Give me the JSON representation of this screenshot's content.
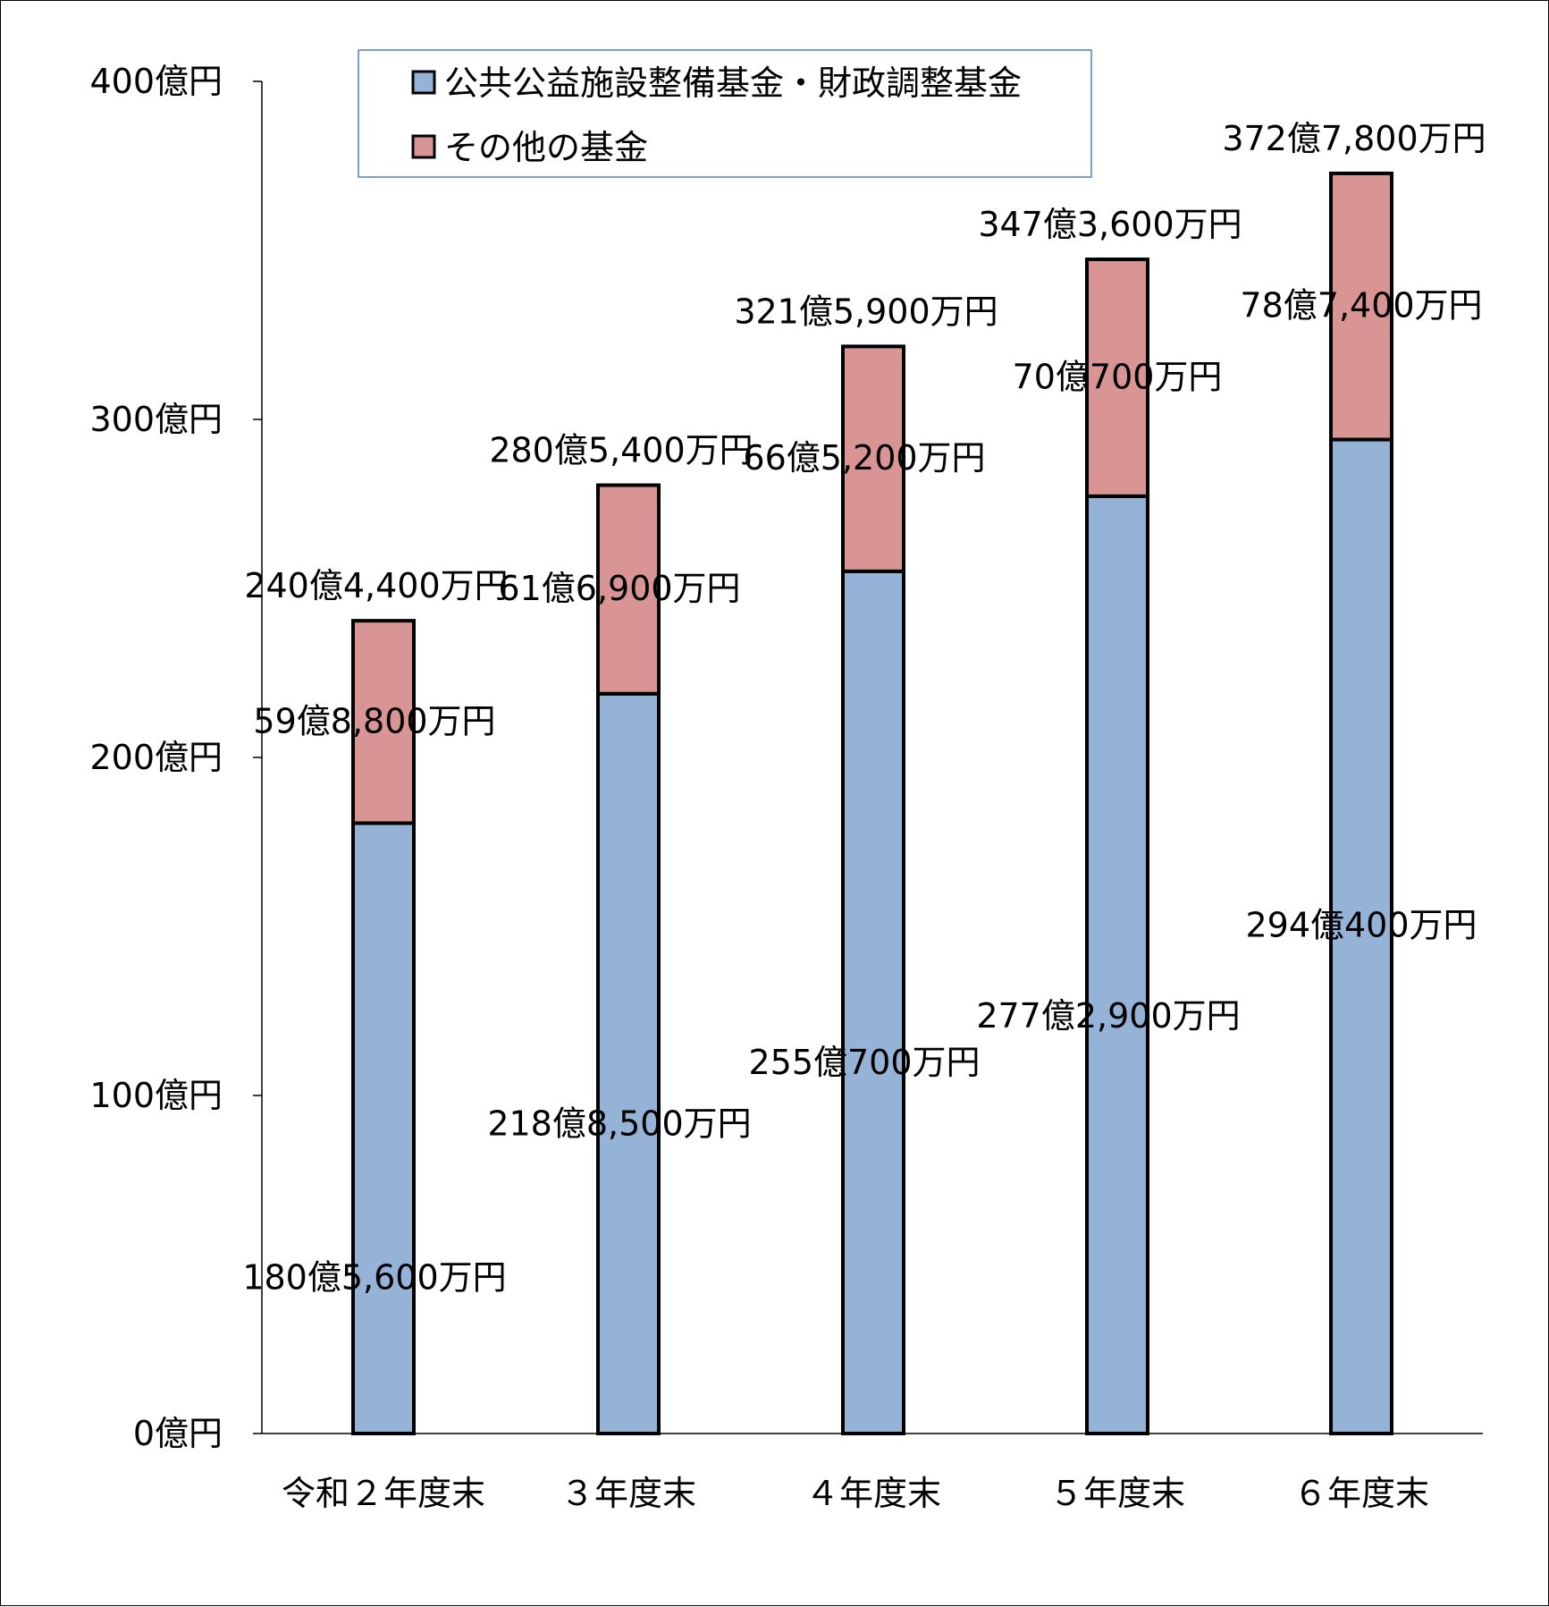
{
  "chart_data": {
    "type": "bar",
    "stacked": true,
    "unit": "億円",
    "categories": [
      "令和２年度末",
      "３年度末",
      "４年度末",
      "５年度末",
      "６年度末"
    ],
    "series": [
      {
        "name": "公共公益施設整備基金・財政調整基金",
        "color": "#95B3D7",
        "values": [
          180.56,
          218.85,
          255.07,
          277.29,
          294.04
        ],
        "labels": [
          "180億5,600万円",
          "218億8,500万円",
          "255億700万円",
          "277億2,900万円",
          "294億400万円"
        ]
      },
      {
        "name": "その他の基金",
        "color": "#D99594",
        "values": [
          59.88,
          61.69,
          66.52,
          70.07,
          78.74
        ],
        "labels": [
          "59億8,800万円",
          "61億6,900万円",
          "66億5,200万円",
          "70億700万円",
          "78億7,400万円"
        ]
      }
    ],
    "totals": [
      240.44,
      280.54,
      321.59,
      347.36,
      372.78
    ],
    "total_labels": [
      "240億4,400万円",
      "280億5,400万円",
      "321億5,900万円",
      "347億3,600万円",
      "372億7,800万円"
    ],
    "ylim": [
      0,
      400
    ],
    "yticks": [
      {
        "value": 0,
        "label": "0億円"
      },
      {
        "value": 100,
        "label": "100億円"
      },
      {
        "value": 200,
        "label": "200億円"
      },
      {
        "value": 300,
        "label": "300億円"
      },
      {
        "value": 400,
        "label": "400億円"
      }
    ],
    "legend_position": "top-left",
    "grid": false,
    "legend_border_color": "#4F81BD"
  }
}
